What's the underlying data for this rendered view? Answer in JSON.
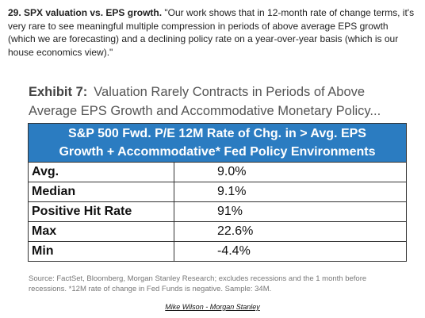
{
  "intro": {
    "lead": "29. SPX valuation vs. EPS growth.",
    "quote": "\"Our work shows that in 12-month rate of change terms, it's very rare to see meaningful multiple compression in periods of above average EPS growth (which we are forecasting) and a declining policy rate on a year-over-year basis (which is our house economics view).\""
  },
  "exhibit": {
    "label": "Exhibit 7:",
    "title": "Valuation Rarely Contracts in Periods of Above Average EPS Growth and Accommodative Monetary Policy..."
  },
  "table": {
    "header": [
      "S&P 500 Fwd. P/E 12M Rate of Chg. in > Avg. EPS",
      "Growth + Accommodative* Fed Policy Environments"
    ],
    "rows": [
      [
        "Avg.",
        "9.0%"
      ],
      [
        "Median",
        "9.1%"
      ],
      [
        "Positive Hit Rate",
        "91%"
      ],
      [
        "Max",
        "22.6%"
      ],
      [
        "Min",
        "-4.4%"
      ]
    ]
  },
  "source": "Source: FactSet, Bloomberg, Morgan Stanley Research; excludes recessions and the 1 month before recessions. *12M rate of change in Fed Funds is negative. Sample: 34M.",
  "credit": "Mike Wilson - Morgan Stanley"
}
